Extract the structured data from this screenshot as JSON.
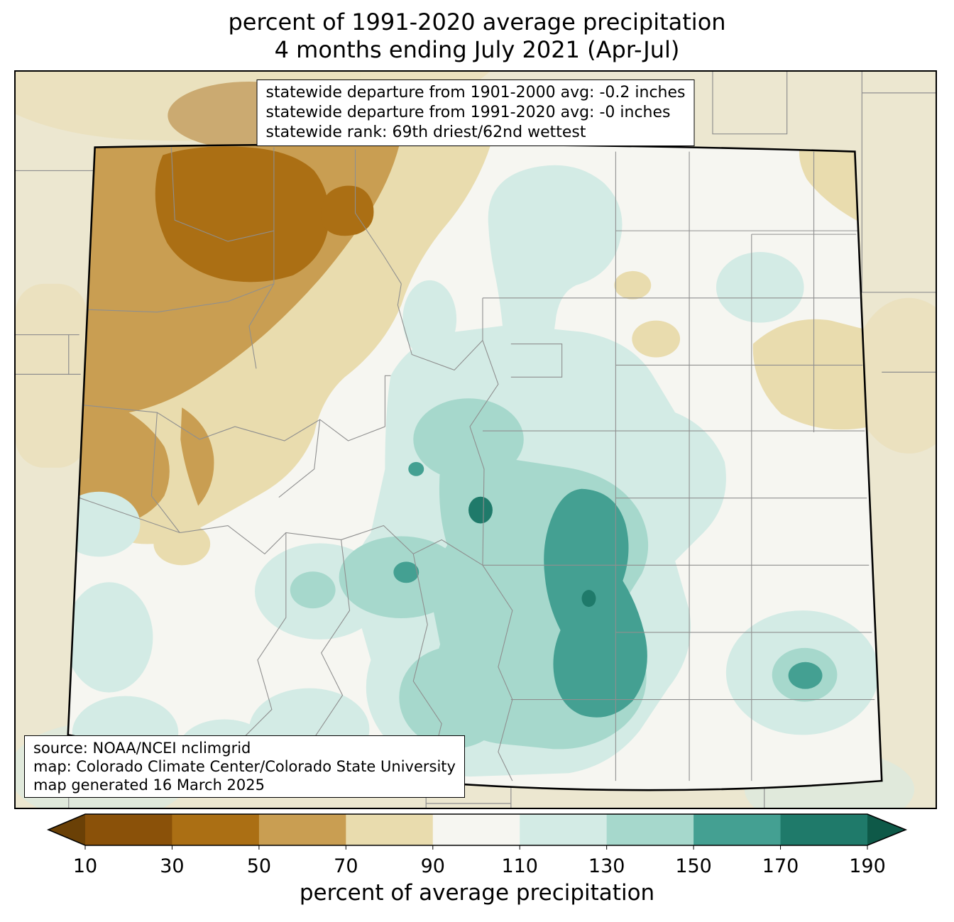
{
  "title": {
    "line1": "percent of 1991-2020 average precipitation",
    "line2": "4 months ending July 2021 (Apr-Jul)"
  },
  "stats_box": {
    "lines": [
      "statewide departure from 1901-2000 avg: -0.2 inches",
      "statewide departure from 1991-2020 avg: -0 inches",
      "statewide rank: 69th driest/62nd wettest"
    ]
  },
  "source_box": {
    "lines": [
      "source: NOAA/NCEI nclimgrid",
      "map: Colorado Climate Center/Colorado State University",
      "map generated 16 March 2025"
    ]
  },
  "colorbar": {
    "label": "percent of average precipitation",
    "ticks": [
      "10",
      "30",
      "50",
      "70",
      "90",
      "110",
      "130",
      "150",
      "170",
      "190"
    ],
    "colors": [
      "#6a4006",
      "#8a5109",
      "#ab6f14",
      "#c99e52",
      "#e9dcae",
      "#f6f6f1",
      "#d3ebe5",
      "#a6d8cc",
      "#44a092",
      "#1f7a6a",
      "#0e5948"
    ],
    "outline_color": "#000000"
  },
  "map": {
    "region": "Colorado",
    "outside_color": "#ece7d0",
    "state_border_color": "#000000",
    "county_line_color": "#8f8f8f"
  }
}
